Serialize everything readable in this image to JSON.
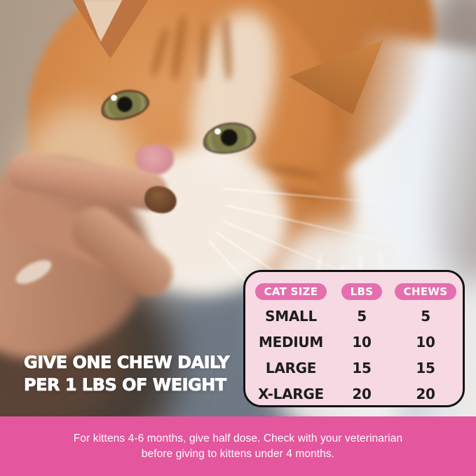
{
  "overlay": {
    "heading_line1": "GIVE ONE CHEW DAILY",
    "heading_line2": "PER 1 LBS OF WEIGHT"
  },
  "table": {
    "headers": [
      "CAT SIZE",
      "LBS",
      "CHEWS"
    ],
    "rows": [
      [
        "SMALL",
        "5",
        "5"
      ],
      [
        "MEDIUM",
        "10",
        "10"
      ],
      [
        "LARGE",
        "15",
        "15"
      ],
      [
        "X-LARGE",
        "20",
        "20"
      ]
    ]
  },
  "footer": {
    "line1": "For kittens 4-6 months, give half dose. Check with your veterinarian",
    "line2": "before giving to kittens under 4 months."
  },
  "colors": {
    "footer_bar": "#e4569e",
    "table_background": "#f6d9e3",
    "header_pill": "#e56fae",
    "table_border": "#141414",
    "heading_text": "#ffffff"
  },
  "chart_data": {
    "type": "table",
    "title": "Feeding guide",
    "columns": [
      "CAT SIZE",
      "LBS",
      "CHEWS"
    ],
    "rows": [
      {
        "cat_size": "SMALL",
        "lbs": 5,
        "chews": 5
      },
      {
        "cat_size": "MEDIUM",
        "lbs": 10,
        "chews": 10
      },
      {
        "cat_size": "LARGE",
        "lbs": 15,
        "chews": 15
      },
      {
        "cat_size": "X-LARGE",
        "lbs": 20,
        "chews": 20
      }
    ]
  }
}
